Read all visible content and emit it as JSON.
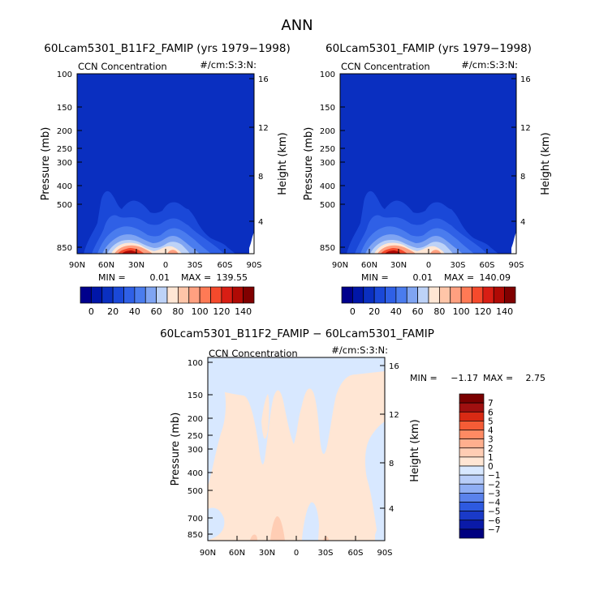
{
  "page_title": "ANN",
  "colors": {
    "p_levels": [
      "#00008C",
      "#0016A8",
      "#0A2FC0",
      "#1A48D8",
      "#2F60E6",
      "#4A7CEE",
      "#7FA4F2",
      "#BDD2F7",
      "#FFE6D4",
      "#FFC5A8",
      "#FFA080",
      "#FF7A55",
      "#F54A2C",
      "#D81E14",
      "#B00A05",
      "#800000"
    ],
    "d_levels": [
      "#000080",
      "#0A1AA8",
      "#1A3AC8",
      "#2E5AE0",
      "#5A82EC",
      "#8FAEF4",
      "#B8CDF8",
      "#D8E8FF",
      "#FFE6D4",
      "#FFCDB4",
      "#FFAF8E",
      "#FF8A63",
      "#F55C36",
      "#D82A14",
      "#A01010",
      "#7A0000"
    ]
  },
  "chart_data": [
    {
      "id": "panel1",
      "type": "contour",
      "title": "60Lcam5301_B11F2_FAMIP (yrs 1979−1998)",
      "variable": "CCN Concentration",
      "units": "#/cm:S:3:N:",
      "xlabel": "",
      "ylabel": "Pressure (mb)",
      "ylabel_right": "Height (km)",
      "x_ticks": [
        "90N",
        "60N",
        "30N",
        "0",
        "30S",
        "60S",
        "90S"
      ],
      "y_ticks": [
        "100",
        "150",
        "200",
        "250",
        "300",
        "400",
        "500",
        "850"
      ],
      "y_ticks_right": [
        "16",
        "12",
        "8",
        "4"
      ],
      "min_label": "MIN =",
      "min": "0.01",
      "max_label": "MAX =",
      "max": "139.55",
      "colorbar_labels": [
        "0",
        "20",
        "40",
        "60",
        "80",
        "100",
        "120",
        "140"
      ]
    },
    {
      "id": "panel2",
      "type": "contour",
      "title": "60Lcam5301_FAMIP (yrs 1979−1998)",
      "variable": "CCN Concentration",
      "units": "#/cm:S:3:N:",
      "xlabel": "",
      "ylabel": "Pressure (mb)",
      "ylabel_right": "Height (km)",
      "x_ticks": [
        "90N",
        "60N",
        "30N",
        "0",
        "30S",
        "60S",
        "90S"
      ],
      "y_ticks": [
        "100",
        "150",
        "200",
        "250",
        "300",
        "400",
        "500",
        "850"
      ],
      "y_ticks_right": [
        "16",
        "12",
        "8",
        "4"
      ],
      "min_label": "MIN =",
      "min": "0.01",
      "max_label": "MAX =",
      "max": "140.09",
      "colorbar_labels": [
        "0",
        "20",
        "40",
        "60",
        "80",
        "100",
        "120",
        "140"
      ]
    },
    {
      "id": "panel3",
      "type": "contour",
      "title": "60Lcam5301_B11F2_FAMIP − 60Lcam5301_FAMIP",
      "variable": "CCN Concentration",
      "units": "#/cm:S:3:N:",
      "xlabel": "",
      "ylabel": "Pressure (mb)",
      "ylabel_right": "Height (km)",
      "x_ticks": [
        "90N",
        "60N",
        "30N",
        "0",
        "30S",
        "60S",
        "90S"
      ],
      "y_ticks": [
        "100",
        "150",
        "200",
        "250",
        "300",
        "400",
        "500",
        "700",
        "850"
      ],
      "y_ticks_right": [
        "16",
        "12",
        "8",
        "4"
      ],
      "min_label": "MIN =",
      "min": "−1.17",
      "max_label": "MAX =",
      "max": "2.75",
      "colorbar_labels": [
        "7",
        "6",
        "5",
        "4",
        "3",
        "2",
        "1",
        "0",
        "−1",
        "−2",
        "−3",
        "−4",
        "−5",
        "−6",
        "−7"
      ]
    }
  ]
}
